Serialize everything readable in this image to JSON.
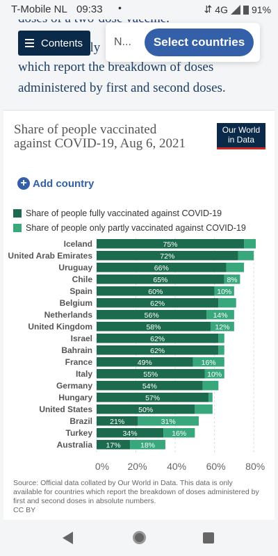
{
  "statusbar": {
    "carrier": "T-Mobile  NL",
    "time": "09:33",
    "dot": "•",
    "network": "4G",
    "battery": "91%"
  },
  "article": {
    "partial_line": "doses of a two-dose vaccine.",
    "line1_tail": "nly",
    "line2": "which report the breakdown of doses",
    "line3": "administered by first and second doses."
  },
  "contents_button": {
    "label": "Contents"
  },
  "popup": {
    "truncated": "N...",
    "select_label": "Select countries"
  },
  "card": {
    "title": "Share of people vaccinated against COVID-19, Aug 6, 2021",
    "logo_line1": "Our World",
    "logo_line2": "in Data",
    "add_country": "Add country",
    "legend": [
      {
        "label": "Share of people fully vaccinated against COVID-19",
        "color": "#1d6b4f"
      },
      {
        "label": "Share of people only partly vaccinated against COVID-19",
        "color": "#38a77c"
      }
    ],
    "source": "Source: Official data collated by Our World in Data. This data is only available for countries which report the breakdown of doses administered by first and second doses in absolute numbers.",
    "license": "CC BY"
  },
  "chart_data": {
    "type": "bar",
    "orientation": "horizontal",
    "stacked": true,
    "categories": [
      "Iceland",
      "United Arab Emirates",
      "Uruguay",
      "Chile",
      "Spain",
      "Belgium",
      "Netherlands",
      "United Kingdom",
      "Israel",
      "Bahrain",
      "France",
      "Italy",
      "Germany",
      "Hungary",
      "United States",
      "Brazil",
      "Turkey",
      "Australia"
    ],
    "series": [
      {
        "name": "Share of people fully vaccinated against COVID-19",
        "values": [
          75,
          72,
          66,
          65,
          60,
          62,
          56,
          58,
          62,
          62,
          49,
          55,
          54,
          57,
          50,
          21,
          34,
          17
        ],
        "labels": [
          "75%",
          "72%",
          "66%",
          "65%",
          "60%",
          "62%",
          "56%",
          "58%",
          "62%",
          "62%",
          "49%",
          "55%",
          "54%",
          "57%",
          "50%",
          "21%",
          "34%",
          "17%"
        ]
      },
      {
        "name": "Share of people only partly vaccinated against COVID-19",
        "values": [
          6,
          8,
          9,
          8,
          10,
          9,
          14,
          12,
          3,
          3,
          16,
          10,
          8,
          2,
          9,
          31,
          16,
          18
        ],
        "labels": [
          "",
          "",
          "",
          "8%",
          "10%",
          "",
          "14%",
          "12%",
          "",
          "",
          "16%",
          "10%",
          "",
          "",
          "",
          "31%",
          "16%",
          "18%"
        ]
      }
    ],
    "xlim": [
      0,
      80
    ],
    "xticks": [
      "0%",
      "20%",
      "40%",
      "60%",
      "80%"
    ],
    "grid": true,
    "colors": [
      "#1d6b4f",
      "#38a77c"
    ]
  }
}
